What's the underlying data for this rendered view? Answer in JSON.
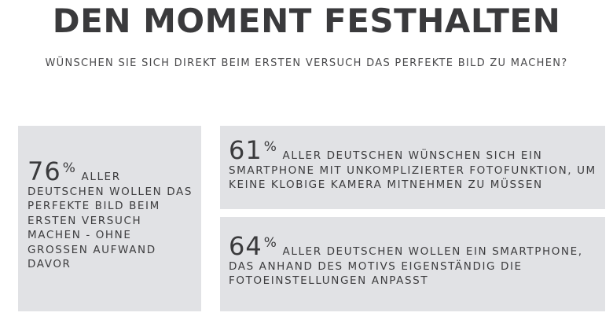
{
  "header": {
    "title": "DEN MOMENT FESTHALTEN",
    "subtitle": "WÜNSCHEN SIE SICH DIREKT BEIM ERSTEN VERSUCH DAS PERFEKTE BILD ZU MACHEN?"
  },
  "stats": [
    {
      "value": "76",
      "unit": "%",
      "text": "ALLER DEUTSCHEN WOLLEN DAS PERFEKTE BILD BEIM ERSTEN VERSUCH MACHEN - OHNE GROSSEN AUFWAND DAVOR"
    },
    {
      "value": "61",
      "unit": "%",
      "text": "ALLER DEUTSCHEN WÜNSCHEN SICH EIN SMARTPHONE MIT UNKOMPLIZIERTER FOTOFUNKTION, UM KEINE KLOBIGE KAMERA MITNEHMEN ZU MÜSSEN"
    },
    {
      "value": "64",
      "unit": "%",
      "text": "ALLER DEUTSCHEN WOLLEN EIN SMARTPHONE, DAS ANHAND DES MOTIVS EIGENSTÄNDIG DIE FOTOEINSTELLUNGEN ANPASST"
    }
  ],
  "colors": {
    "card_background": "#e1e2e5",
    "text": "#3d3d3f",
    "background": "#ffffff"
  }
}
